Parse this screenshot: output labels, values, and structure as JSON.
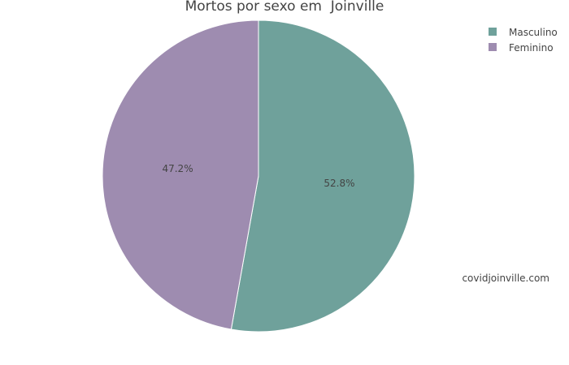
{
  "chart_data": {
    "type": "pie",
    "title": "Mortos por sexo em  Joinville",
    "slices": [
      {
        "label": "Masculino",
        "value": 52.8,
        "display": "52.8%",
        "color": "#6fa19b"
      },
      {
        "label": "Feminino",
        "value": 47.2,
        "display": "47.2%",
        "color": "#9e8cb0"
      }
    ],
    "legend_position": "top-right"
  },
  "watermark": "covidjoinville.com"
}
